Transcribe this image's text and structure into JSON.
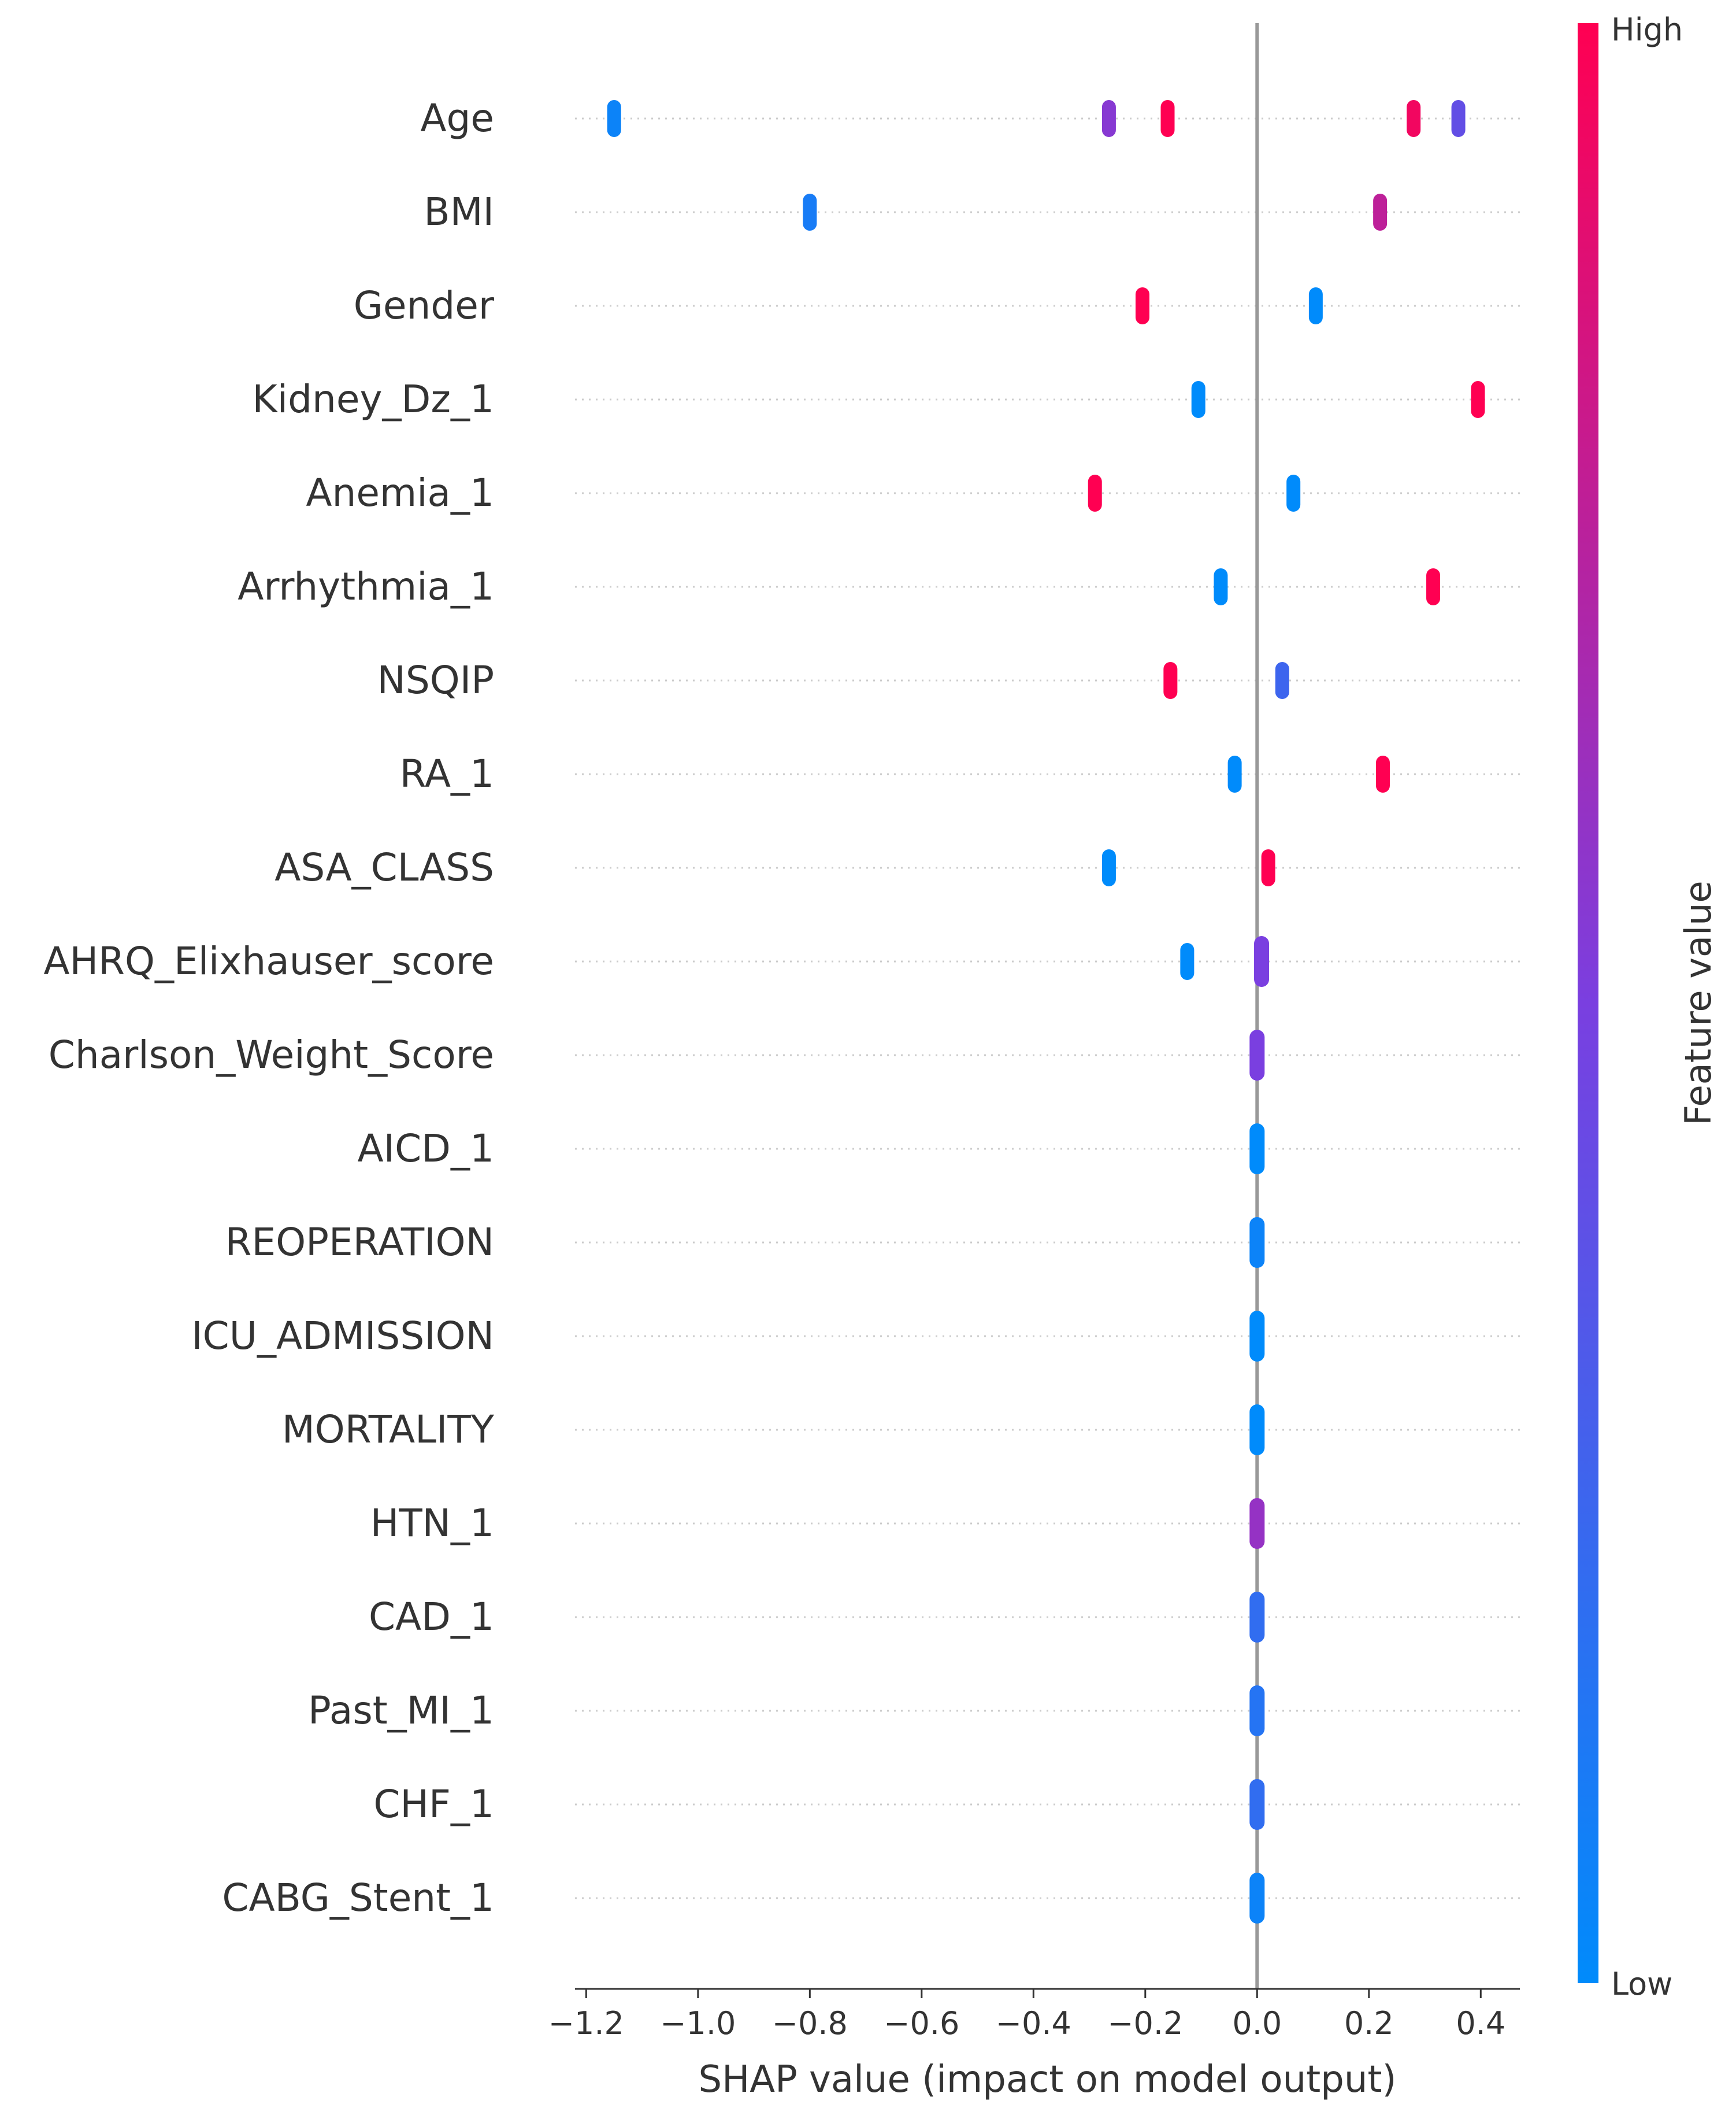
{
  "chart_data": {
    "type": "scatter",
    "subtype": "shap-beeswarm-summary",
    "title": "",
    "xlabel": "SHAP value (impact on model output)",
    "ylabel": "",
    "xlim": [
      -1.22,
      0.47
    ],
    "xticks": [
      -1.2,
      -1.0,
      -0.8,
      -0.6,
      -0.4,
      -0.2,
      0.0,
      0.2,
      0.4
    ],
    "xtick_labels": [
      "−1.2",
      "−1.0",
      "−0.8",
      "−0.6",
      "−0.4",
      "−0.2",
      "0.0",
      "0.2",
      "0.4"
    ],
    "colorbar": {
      "title": "Feature value",
      "high_label": "High",
      "low_label": "Low",
      "high_color": "#ff0052",
      "low_color": "#008bfb"
    },
    "features": [
      {
        "name": "Age",
        "clusters": [
          {
            "x": -1.15,
            "fv": 0.05
          },
          {
            "x": -0.265,
            "fv": 0.55
          },
          {
            "x": -0.16,
            "fv": 1.0
          },
          {
            "x": 0.28,
            "fv": 0.95
          },
          {
            "x": 0.36,
            "fv": 0.4
          }
        ]
      },
      {
        "name": "BMI",
        "clusters": [
          {
            "x": -0.8,
            "fv": 0.1
          },
          {
            "x": 0.22,
            "fv": 0.75
          }
        ]
      },
      {
        "name": "Gender",
        "clusters": [
          {
            "x": -0.205,
            "fv": 1.0
          },
          {
            "x": 0.105,
            "fv": 0.0
          }
        ]
      },
      {
        "name": "Kidney_Dz_1",
        "clusters": [
          {
            "x": -0.105,
            "fv": 0.0
          },
          {
            "x": 0.395,
            "fv": 1.0
          }
        ]
      },
      {
        "name": "Anemia_1",
        "clusters": [
          {
            "x": -0.29,
            "fv": 1.0
          },
          {
            "x": 0.065,
            "fv": 0.0
          }
        ]
      },
      {
        "name": "Arrhythmia_1",
        "clusters": [
          {
            "x": -0.065,
            "fv": 0.0
          },
          {
            "x": 0.315,
            "fv": 1.0
          }
        ]
      },
      {
        "name": "NSQIP",
        "clusters": [
          {
            "x": -0.155,
            "fv": 1.0
          },
          {
            "x": 0.045,
            "fv": 0.25
          }
        ]
      },
      {
        "name": "RA_1",
        "clusters": [
          {
            "x": -0.04,
            "fv": 0.0
          },
          {
            "x": 0.225,
            "fv": 1.0
          }
        ]
      },
      {
        "name": "ASA_CLASS",
        "clusters": [
          {
            "x": -0.265,
            "fv": 0.0
          },
          {
            "x": 0.02,
            "fv": 1.0
          }
        ]
      },
      {
        "name": "AHRQ_Elixhauser_score",
        "clusters": [
          {
            "x": -0.125,
            "fv": 0.0
          },
          {
            "x": 0.008,
            "fv": 0.5
          }
        ]
      },
      {
        "name": "Charlson_Weight_Score",
        "clusters": [
          {
            "x": 0.0,
            "fv": 0.5
          }
        ]
      },
      {
        "name": "AICD_1",
        "clusters": [
          {
            "x": 0.0,
            "fv": 0.0
          }
        ]
      },
      {
        "name": "REOPERATION",
        "clusters": [
          {
            "x": 0.0,
            "fv": 0.05
          }
        ]
      },
      {
        "name": "ICU_ADMISSION",
        "clusters": [
          {
            "x": 0.0,
            "fv": 0.0
          }
        ]
      },
      {
        "name": "MORTALITY",
        "clusters": [
          {
            "x": 0.0,
            "fv": 0.0
          }
        ]
      },
      {
        "name": "HTN_1",
        "clusters": [
          {
            "x": 0.0,
            "fv": 0.6
          }
        ]
      },
      {
        "name": "CAD_1",
        "clusters": [
          {
            "x": 0.0,
            "fv": 0.2
          }
        ]
      },
      {
        "name": "Past_MI_1",
        "clusters": [
          {
            "x": 0.0,
            "fv": 0.15
          }
        ]
      },
      {
        "name": "CHF_1",
        "clusters": [
          {
            "x": 0.0,
            "fv": 0.2
          }
        ]
      },
      {
        "name": "CABG_Stent_1",
        "clusters": [
          {
            "x": 0.0,
            "fv": 0.05
          }
        ]
      }
    ]
  }
}
